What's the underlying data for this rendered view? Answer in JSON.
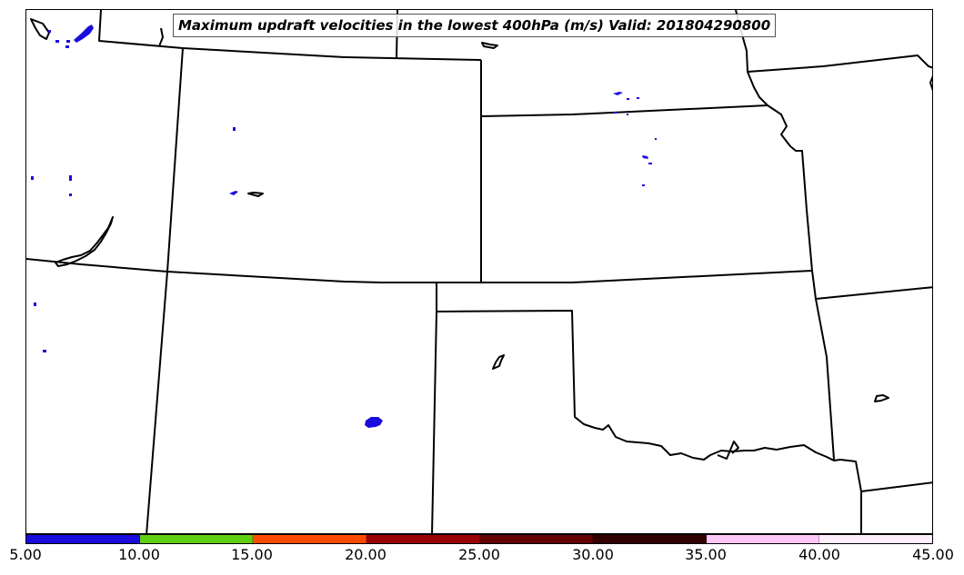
{
  "title": "Maximum updraft velocities in the lowest 400hPa (m/s) Valid: 201804290800",
  "colorbar": {
    "colors": [
      "#1a0bdc",
      "#5fcf12",
      "#ff4a00",
      "#9b0303",
      "#650303",
      "#330000",
      "#ffc6f6",
      "#ffeefc"
    ],
    "ticks": [
      "5.00",
      "10.00",
      "15.00",
      "20.00",
      "25.00",
      "30.00",
      "35.00",
      "40.00",
      "45.00"
    ]
  }
}
